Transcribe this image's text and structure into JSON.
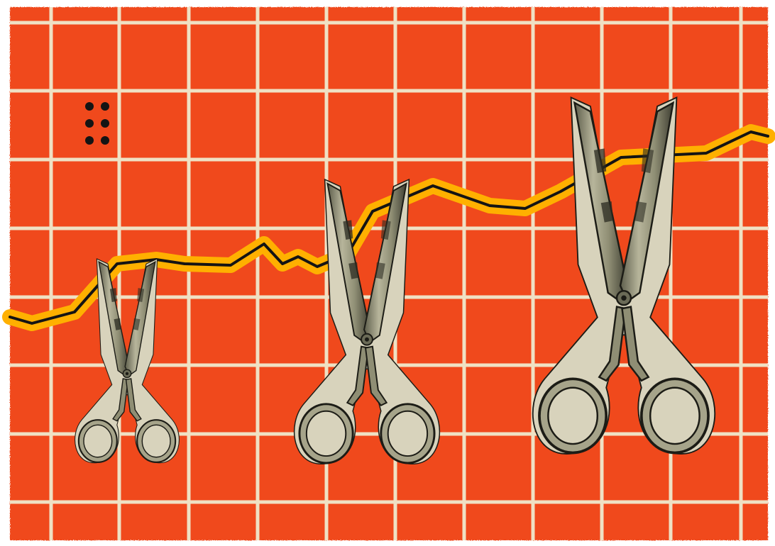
{
  "illustration": {
    "kind": "collage",
    "colors": {
      "page_border": "#ffffff",
      "grid_background": "#f04a1e",
      "grid_lines": "#efe1c4",
      "trend_highlight": "#ffb000",
      "trend_line": "#141414",
      "dots": "#141414",
      "scissor_paper": "#d8d3bc",
      "scissor_metal": "#9d9c81",
      "scissor_shadow": "#3a3a30",
      "scissor_outline": "#1c1c16"
    },
    "decor": {
      "dot_pattern": {
        "rows": 3,
        "cols": 2
      }
    },
    "scissors": [
      {
        "name": "scissors-small"
      },
      {
        "name": "scissors-medium"
      },
      {
        "name": "scissors-large"
      }
    ]
  }
}
